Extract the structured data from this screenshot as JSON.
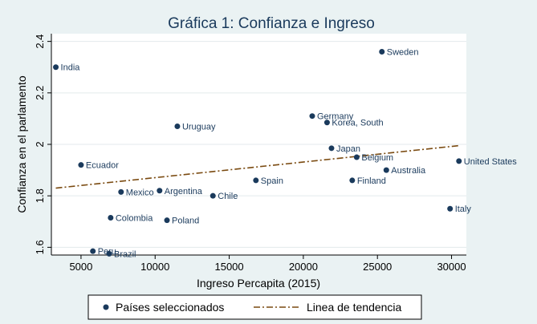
{
  "chart_data": {
    "type": "scatter",
    "title": "Gráfica 1: Confianza e Ingreso",
    "xlabel": "Ingreso Percapita (2015)",
    "ylabel": "Confianza en el parlamento",
    "xlim": [
      3000,
      31000
    ],
    "ylim": [
      1.57,
      2.43
    ],
    "xticks": [
      5000,
      10000,
      15000,
      20000,
      25000,
      30000
    ],
    "xtick_labels": [
      "5000",
      "10000",
      "15000",
      "20000",
      "25000",
      "30000"
    ],
    "yticks": [
      1.6,
      1.8,
      2.0,
      2.2,
      2.4
    ],
    "ytick_labels": [
      "1.6",
      "1.8",
      "2",
      "2.2",
      "2.4"
    ],
    "series": [
      {
        "name": "Países seleccionados",
        "color": "#1a3a5c",
        "points": [
          {
            "label": "India",
            "x": 3300,
            "y": 2.3
          },
          {
            "label": "Sweden",
            "x": 25300,
            "y": 2.36
          },
          {
            "label": "Germany",
            "x": 20600,
            "y": 2.11
          },
          {
            "label": "Korea, South",
            "x": 21600,
            "y": 2.085
          },
          {
            "label": "Uruguay",
            "x": 11500,
            "y": 2.07
          },
          {
            "label": "Japan",
            "x": 21900,
            "y": 1.985
          },
          {
            "label": "Belgium",
            "x": 23600,
            "y": 1.95
          },
          {
            "label": "United States",
            "x": 30500,
            "y": 1.935
          },
          {
            "label": "Ecuador",
            "x": 5000,
            "y": 1.92
          },
          {
            "label": "Australia",
            "x": 25600,
            "y": 1.9
          },
          {
            "label": "Spain",
            "x": 16800,
            "y": 1.86
          },
          {
            "label": "Finland",
            "x": 23300,
            "y": 1.86
          },
          {
            "label": "Mexico",
            "x": 7700,
            "y": 1.815
          },
          {
            "label": "Argentina",
            "x": 10300,
            "y": 1.82
          },
          {
            "label": "Chile",
            "x": 13900,
            "y": 1.8
          },
          {
            "label": "Italy",
            "x": 29900,
            "y": 1.75
          },
          {
            "label": "Colombia",
            "x": 7000,
            "y": 1.715
          },
          {
            "label": "Poland",
            "x": 10800,
            "y": 1.705
          },
          {
            "label": "Peru",
            "x": 5800,
            "y": 1.585
          },
          {
            "label": "Brazil",
            "x": 6900,
            "y": 1.575
          }
        ]
      },
      {
        "name": "Linea de tendencia",
        "color": "#7a4a10",
        "line": [
          {
            "x": 3300,
            "y": 1.83
          },
          {
            "x": 30500,
            "y": 1.995
          }
        ]
      }
    ],
    "legend": [
      "Países seleccionados",
      "Linea de tendencia"
    ],
    "legend_position": "bottom",
    "grid": true
  }
}
